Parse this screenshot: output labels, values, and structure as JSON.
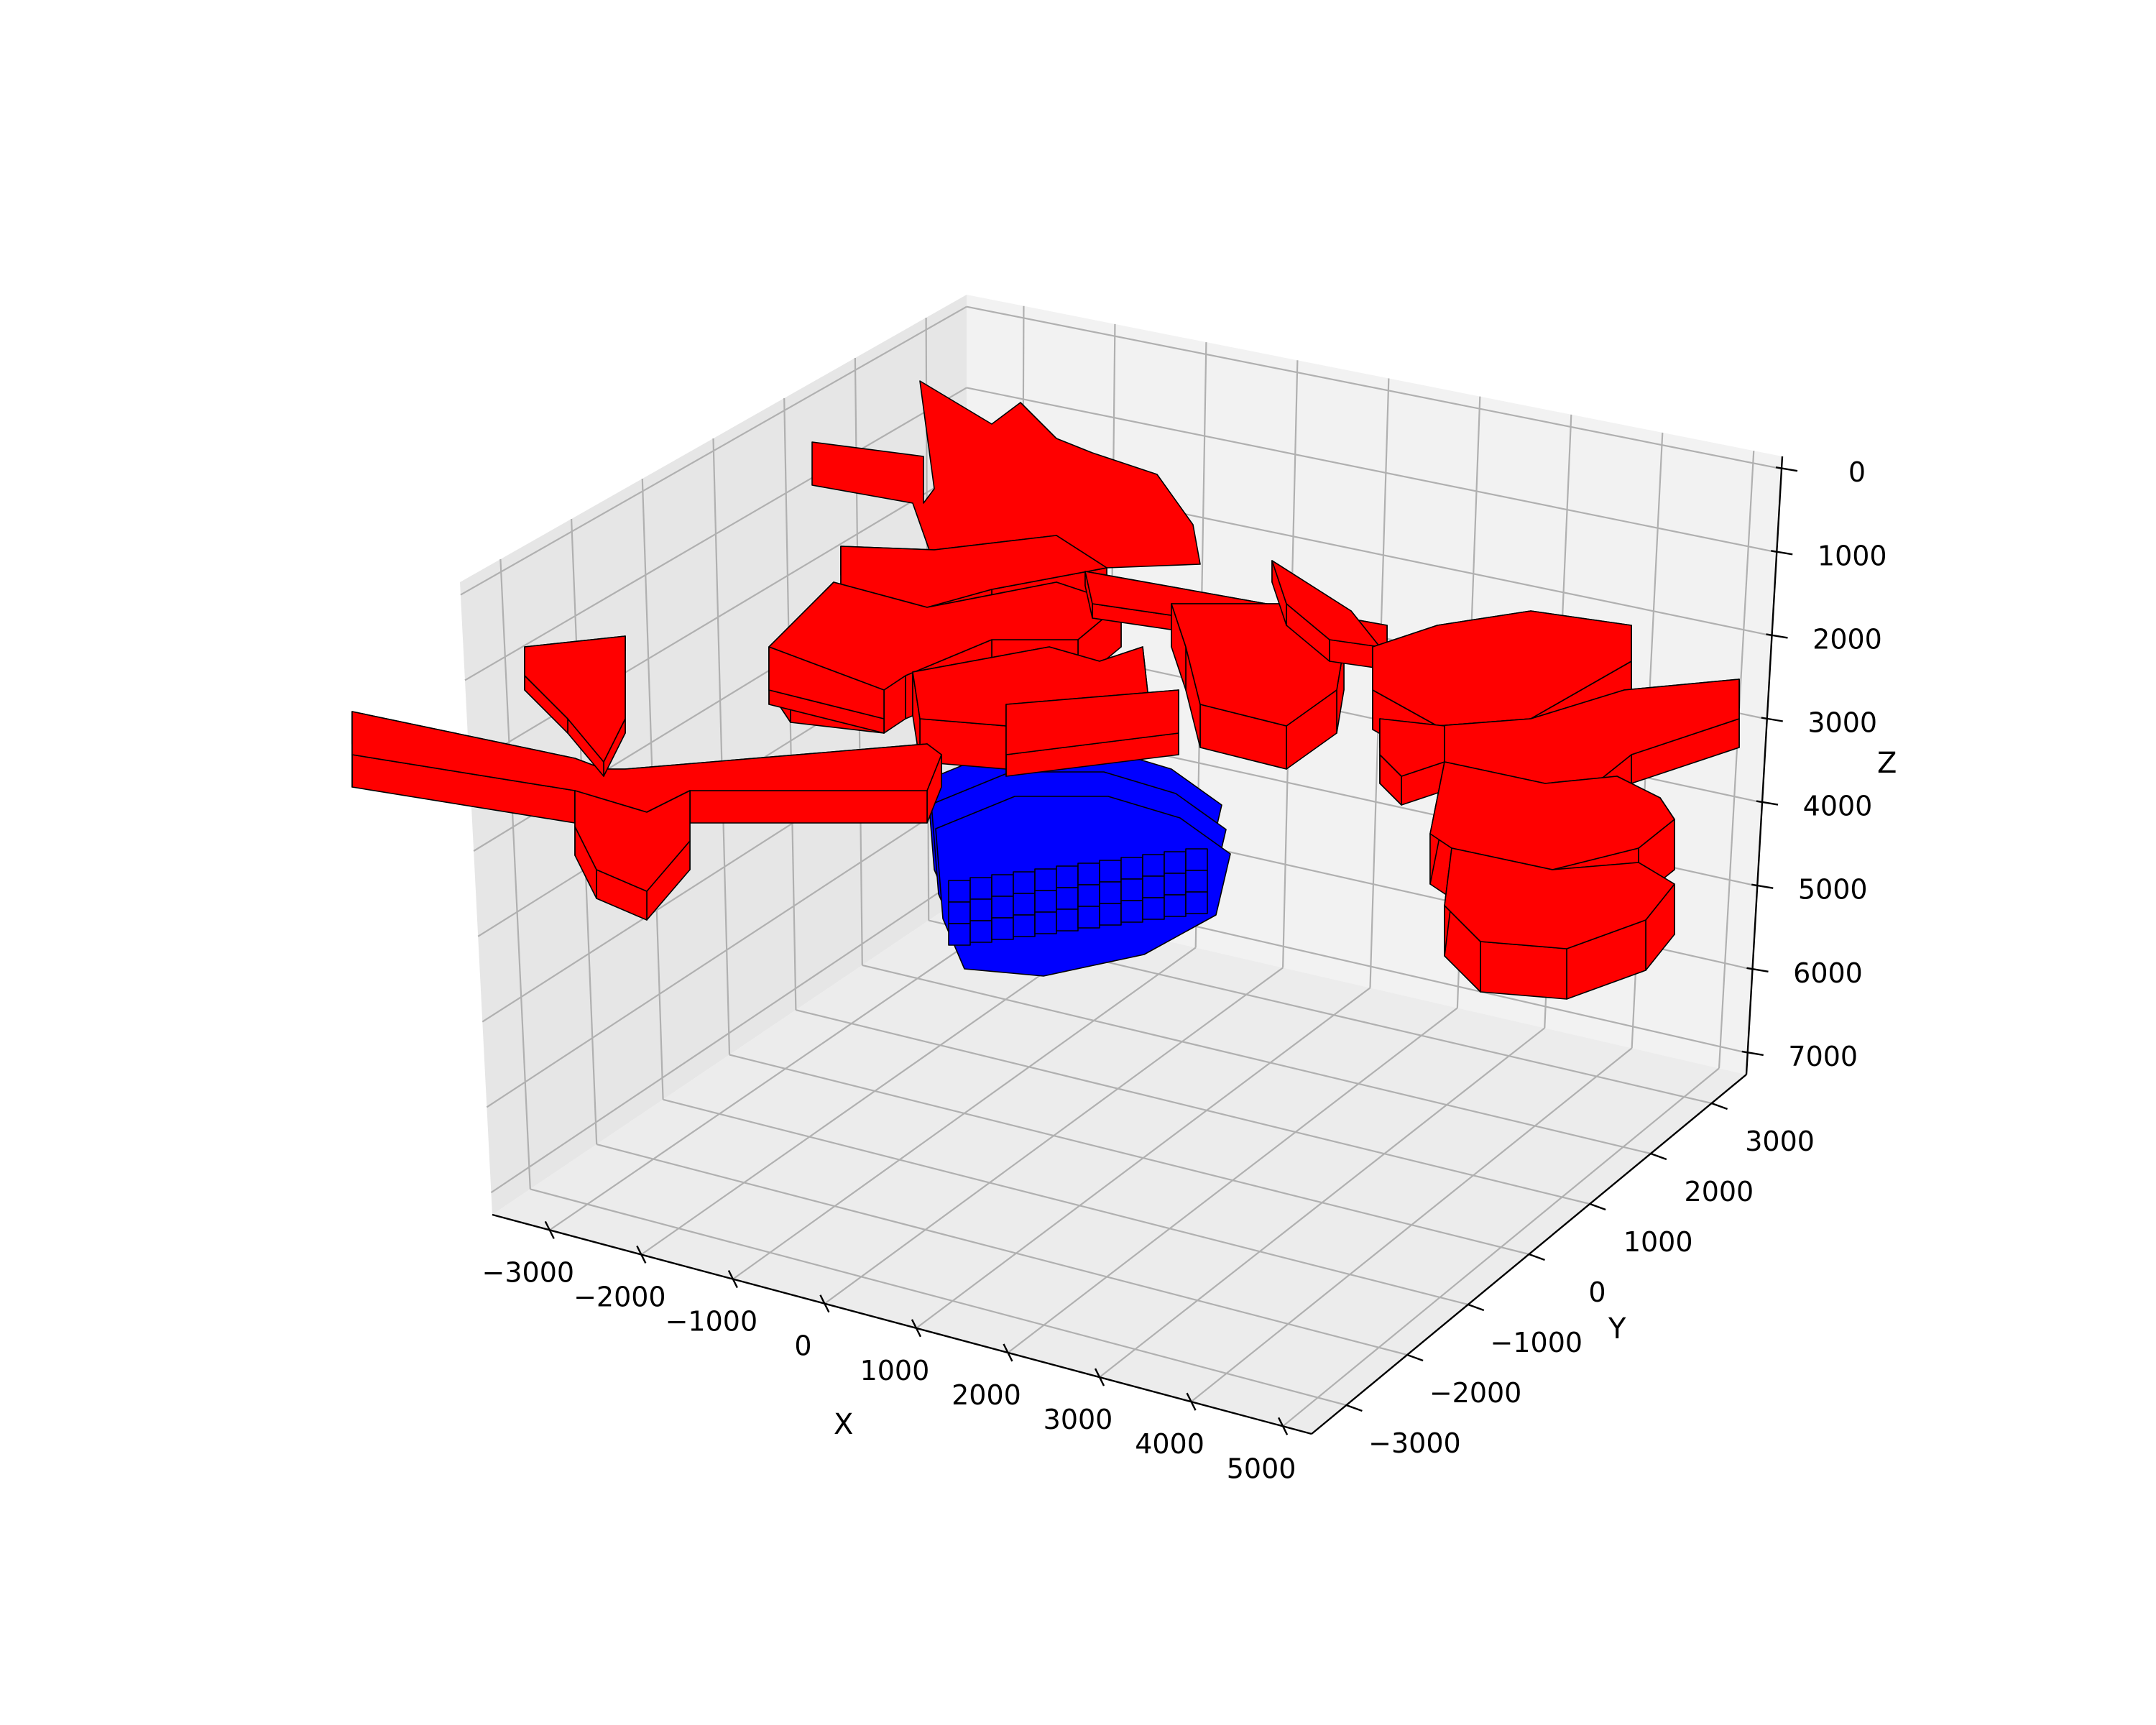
{
  "chart_data": {
    "type": "3d-voxel",
    "xlabel": "X",
    "ylabel": "Y",
    "zlabel": "Z",
    "xlim": [
      -3500,
      5500
    ],
    "ylim": [
      -3500,
      3500
    ],
    "zlim": [
      7000,
      0
    ],
    "z_inverted": true,
    "grid": true,
    "x_ticks": [
      "−3000",
      "−2000",
      "−1000",
      "0",
      "1000",
      "2000",
      "3000",
      "4000",
      "5000"
    ],
    "y_ticks": [
      "−3000",
      "−2000",
      "−1000",
      "0",
      "1000",
      "2000",
      "3000"
    ],
    "z_ticks": [
      "0",
      "1000",
      "2000",
      "3000",
      "4000",
      "5000",
      "6000",
      "7000"
    ],
    "colors": {
      "red_bodies": "#ff0000",
      "blue_body": "#0000ff",
      "edge": "#000000"
    },
    "series": [
      {
        "color": "#ff0000",
        "depth_range": [
          0,
          5500
        ]
      },
      {
        "color": "#0000ff",
        "depth_range": [
          2000,
          4000
        ]
      }
    ]
  }
}
